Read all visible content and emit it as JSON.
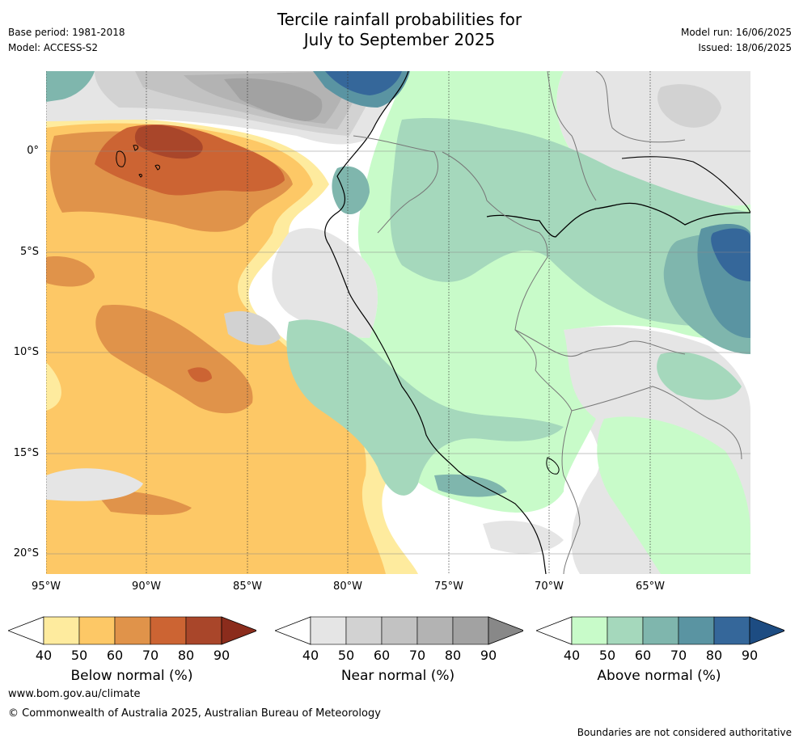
{
  "title_line1": "Tercile rainfall probabilities for",
  "title_line2": "July to September 2025",
  "base_period": "Base period: 1981-2018",
  "model": "Model: ACCESS-S2",
  "model_run": "Model run: 16/06/2025",
  "issued": "Issued: 18/06/2025",
  "lat_labels": [
    "0°",
    "5°S",
    "10°S",
    "15°S",
    "20°S"
  ],
  "lon_labels": [
    "95°W",
    "90°W",
    "85°W",
    "80°W",
    "75°W",
    "70°W",
    "65°W"
  ],
  "colorbars": [
    {
      "label": "Below normal (%)",
      "ticks": [
        "40",
        "50",
        "60",
        "70",
        "80",
        "90"
      ],
      "colors": [
        "#ffffff",
        "#feeb9e",
        "#fdc866",
        "#e0934a",
        "#cc6433",
        "#a9462a",
        "#8b2c1c"
      ]
    },
    {
      "label": "Near normal (%)",
      "ticks": [
        "40",
        "50",
        "60",
        "70",
        "80",
        "90"
      ],
      "colors": [
        "#ffffff",
        "#e5e5e5",
        "#d2d2d2",
        "#c2c2c2",
        "#b3b3b3",
        "#a2a2a2",
        "#888888"
      ]
    },
    {
      "label": "Above normal (%)",
      "ticks": [
        "40",
        "50",
        "60",
        "70",
        "80",
        "90"
      ],
      "colors": [
        "#ffffff",
        "#c8fbc9",
        "#a5d8bc",
        "#7fb6ad",
        "#5a94a2",
        "#35679a",
        "#1d4c82"
      ]
    }
  ],
  "website": "www.bom.gov.au/climate",
  "copyright": "© Commonwealth of Australia 2025, Australian Bureau of Meteorology",
  "disclaimer": "Boundaries are not considered authoritative"
}
